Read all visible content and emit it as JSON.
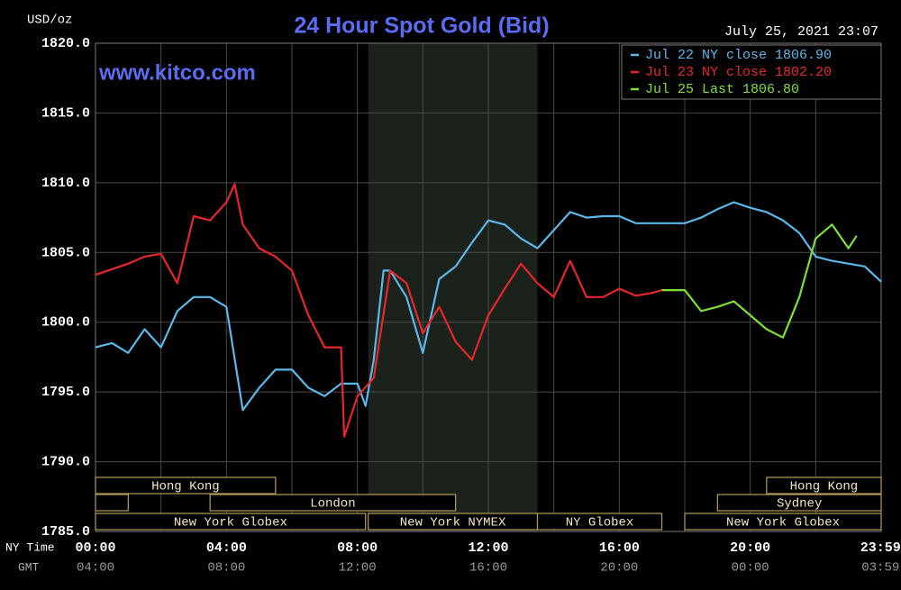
{
  "chart_data": {
    "type": "line",
    "title": "24 Hour Spot Gold (Bid)",
    "unit_label": "USD/oz",
    "timestamp": "July 25, 2021 23:07",
    "watermark": "www.kitco.com",
    "x_axis_label": "NY Time",
    "x2_axis_label": "GMT",
    "xlim": [
      0,
      24
    ],
    "ylim": [
      1785,
      1820
    ],
    "yticks": [
      {
        "value": 1785,
        "label": "1785.0"
      },
      {
        "value": 1790,
        "label": "1790.0"
      },
      {
        "value": 1795,
        "label": "1795.0"
      },
      {
        "value": 1800,
        "label": "1800.0"
      },
      {
        "value": 1805,
        "label": "1805.0"
      },
      {
        "value": 1810,
        "label": "1810.0"
      },
      {
        "value": 1815,
        "label": "1815.0"
      },
      {
        "value": 1820,
        "label": "1820.0"
      }
    ],
    "xticks": [
      {
        "value": 0,
        "label": "00:00"
      },
      {
        "value": 4,
        "label": "04:00"
      },
      {
        "value": 8,
        "label": "08:00"
      },
      {
        "value": 12,
        "label": "12:00"
      },
      {
        "value": 16,
        "label": "16:00"
      },
      {
        "value": 20,
        "label": "20:00"
      },
      {
        "value": 23.98,
        "label": "23:59"
      }
    ],
    "x2ticks": [
      {
        "value": 0,
        "label": "04:00"
      },
      {
        "value": 4,
        "label": "08:00"
      },
      {
        "value": 8,
        "label": "12:00"
      },
      {
        "value": 12,
        "label": "16:00"
      },
      {
        "value": 16,
        "label": "20:00"
      },
      {
        "value": 20,
        "label": "00:00"
      },
      {
        "value": 23.98,
        "label": "03:59"
      }
    ],
    "x_gridlines": [
      0,
      2,
      4,
      6,
      8,
      10,
      12,
      14,
      16,
      18,
      20,
      22,
      24
    ],
    "grid": true,
    "legend": "top-right",
    "highlight": [
      8.33,
      13.5
    ],
    "sessions": [
      {
        "label": "Hong Kong",
        "start": 0,
        "end": 5.5,
        "row": 0
      },
      {
        "label": "Hong Kong",
        "start": 20.5,
        "end": 24,
        "row": 0
      },
      {
        "start": 0,
        "end": 1,
        "row": 1
      },
      {
        "label": "London",
        "start": 3.5,
        "end": 11,
        "row": 1
      },
      {
        "label": "Sydney",
        "start": 19,
        "end": 24,
        "row": 1
      },
      {
        "label": "New York Globex",
        "start": 0,
        "end": 8.25,
        "row": 2
      },
      {
        "label": "New York NYMEX",
        "start": 8.33,
        "end": 13.5,
        "row": 2
      },
      {
        "label": "NY Globex",
        "start": 13.5,
        "end": 17.3,
        "row": 2
      },
      {
        "label": "New York Globex",
        "start": 18,
        "end": 24,
        "row": 2
      }
    ],
    "series": [
      {
        "name": "Jul 22 NY close 1806.90",
        "color": "#5ab8ea",
        "x": [
          0,
          0.5,
          1,
          1.5,
          2,
          2.5,
          3,
          3.5,
          4,
          4.5,
          5,
          5.5,
          6,
          6.5,
          7,
          7.5,
          8,
          8.25,
          8.5,
          8.8,
          9,
          9.5,
          10,
          10.5,
          11,
          11.5,
          12,
          12.5,
          13,
          13.5,
          14,
          14.5,
          15,
          15.5,
          16,
          16.5,
          17,
          17.5,
          18,
          18.5,
          19,
          19.5,
          20,
          20.5,
          21,
          21.5,
          22,
          22.5,
          23,
          23.5,
          24
        ],
        "values": [
          1798.2,
          1798.5,
          1797.8,
          1799.5,
          1798.2,
          1800.8,
          1801.8,
          1801.8,
          1801.1,
          1793.7,
          1795.3,
          1796.6,
          1796.6,
          1795.3,
          1794.7,
          1795.6,
          1795.6,
          1794.0,
          1797.3,
          1803.7,
          1803.7,
          1801.8,
          1797.8,
          1803.1,
          1804.0,
          1805.7,
          1807.3,
          1807.0,
          1806.0,
          1805.3,
          1806.6,
          1807.9,
          1807.5,
          1807.6,
          1807.6,
          1807.1,
          1807.1,
          1807.1,
          1807.1,
          1807.5,
          1808.1,
          1808.6,
          1808.2,
          1807.9,
          1807.3,
          1806.4,
          1804.7,
          1804.4,
          1804.2,
          1804.0,
          1802.9
        ]
      },
      {
        "name": "Jul 23 NY close 1802.20",
        "color": "#e8262a",
        "x": [
          0,
          0.5,
          1,
          1.5,
          2,
          2.5,
          3,
          3.5,
          4,
          4.25,
          4.5,
          5,
          5.5,
          6,
          6.5,
          7,
          7.5,
          7.6,
          8,
          8.5,
          9,
          9.5,
          10,
          10.5,
          11,
          11.5,
          12,
          12.5,
          13,
          13.5,
          14,
          14.5,
          15,
          15.5,
          16,
          16.5,
          17,
          17.3
        ],
        "values": [
          1803.4,
          1803.8,
          1804.2,
          1804.7,
          1804.9,
          1802.8,
          1807.6,
          1807.3,
          1808.6,
          1809.9,
          1807.0,
          1805.3,
          1804.7,
          1803.7,
          1800.5,
          1798.2,
          1798.2,
          1791.8,
          1794.7,
          1796.0,
          1803.7,
          1802.8,
          1799.2,
          1801.1,
          1798.6,
          1797.3,
          1800.5,
          1802.4,
          1804.2,
          1802.8,
          1801.8,
          1804.4,
          1801.8,
          1801.8,
          1802.4,
          1801.9,
          1802.1,
          1802.3
        ]
      },
      {
        "name": "Jul 25 Last 1806.80",
        "color": "#7ee032",
        "x": [
          17.3,
          18,
          18.5,
          19,
          19.5,
          20,
          20.5,
          21,
          21.5,
          22,
          22.5,
          23,
          23.25
        ],
        "values": [
          1802.3,
          1802.3,
          1800.8,
          1801.1,
          1801.5,
          1800.5,
          1799.5,
          1798.9,
          1801.8,
          1806.0,
          1807.0,
          1805.3,
          1806.2
        ]
      }
    ]
  }
}
